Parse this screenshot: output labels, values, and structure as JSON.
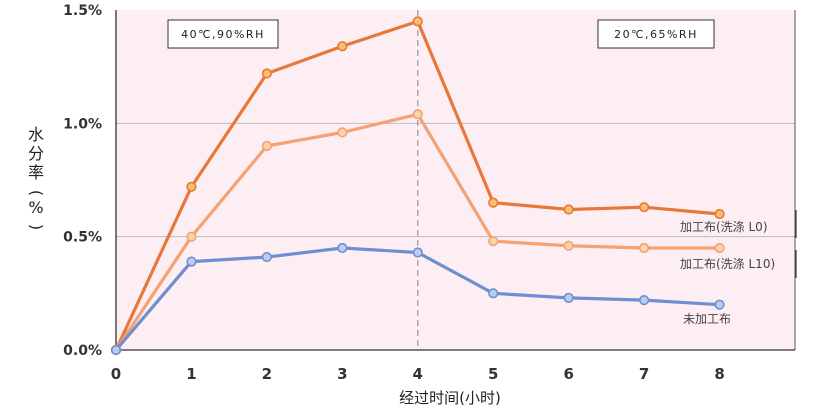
{
  "chart_data": {
    "type": "line",
    "xlabel": "经过时间(小时)",
    "ylabel": "水分率(%)",
    "x": [
      0,
      1,
      2,
      3,
      4,
      5,
      6,
      7,
      8
    ],
    "xticks": [
      "0",
      "1",
      "2",
      "3",
      "4",
      "5",
      "6",
      "7",
      "8"
    ],
    "yticks": [
      "0.0%",
      "0.5%",
      "1.0%",
      "1.5%"
    ],
    "ytick_values": [
      0,
      0.5,
      1.0,
      1.5
    ],
    "xlim": [
      0,
      9
    ],
    "ylim": [
      0,
      1.5
    ],
    "grid": "horizontal",
    "background_color": "#fdeef4",
    "divider_x": 4,
    "conditions": [
      {
        "text": "40℃,90%RH",
        "position": "top-left"
      },
      {
        "text": "20℃,65%RH",
        "position": "top-right"
      }
    ],
    "series": [
      {
        "name": "加工布(洗涤 L0)",
        "color": "#e8773a",
        "marker_fill": "#f5c16a",
        "values": [
          0,
          0.72,
          1.22,
          1.34,
          1.45,
          0.65,
          0.62,
          0.63,
          0.6
        ]
      },
      {
        "name": "加工布(洗涤 L10)",
        "color": "#f4a173",
        "marker_fill": "#fbd3a8",
        "values": [
          0,
          0.5,
          0.9,
          0.96,
          1.04,
          0.48,
          0.46,
          0.45,
          0.45
        ]
      },
      {
        "name": "未加工布",
        "color": "#6f8fd0",
        "marker_fill": "#b9cdef",
        "values": [
          0,
          0.39,
          0.41,
          0.45,
          0.43,
          0.25,
          0.23,
          0.22,
          0.2
        ]
      }
    ]
  }
}
